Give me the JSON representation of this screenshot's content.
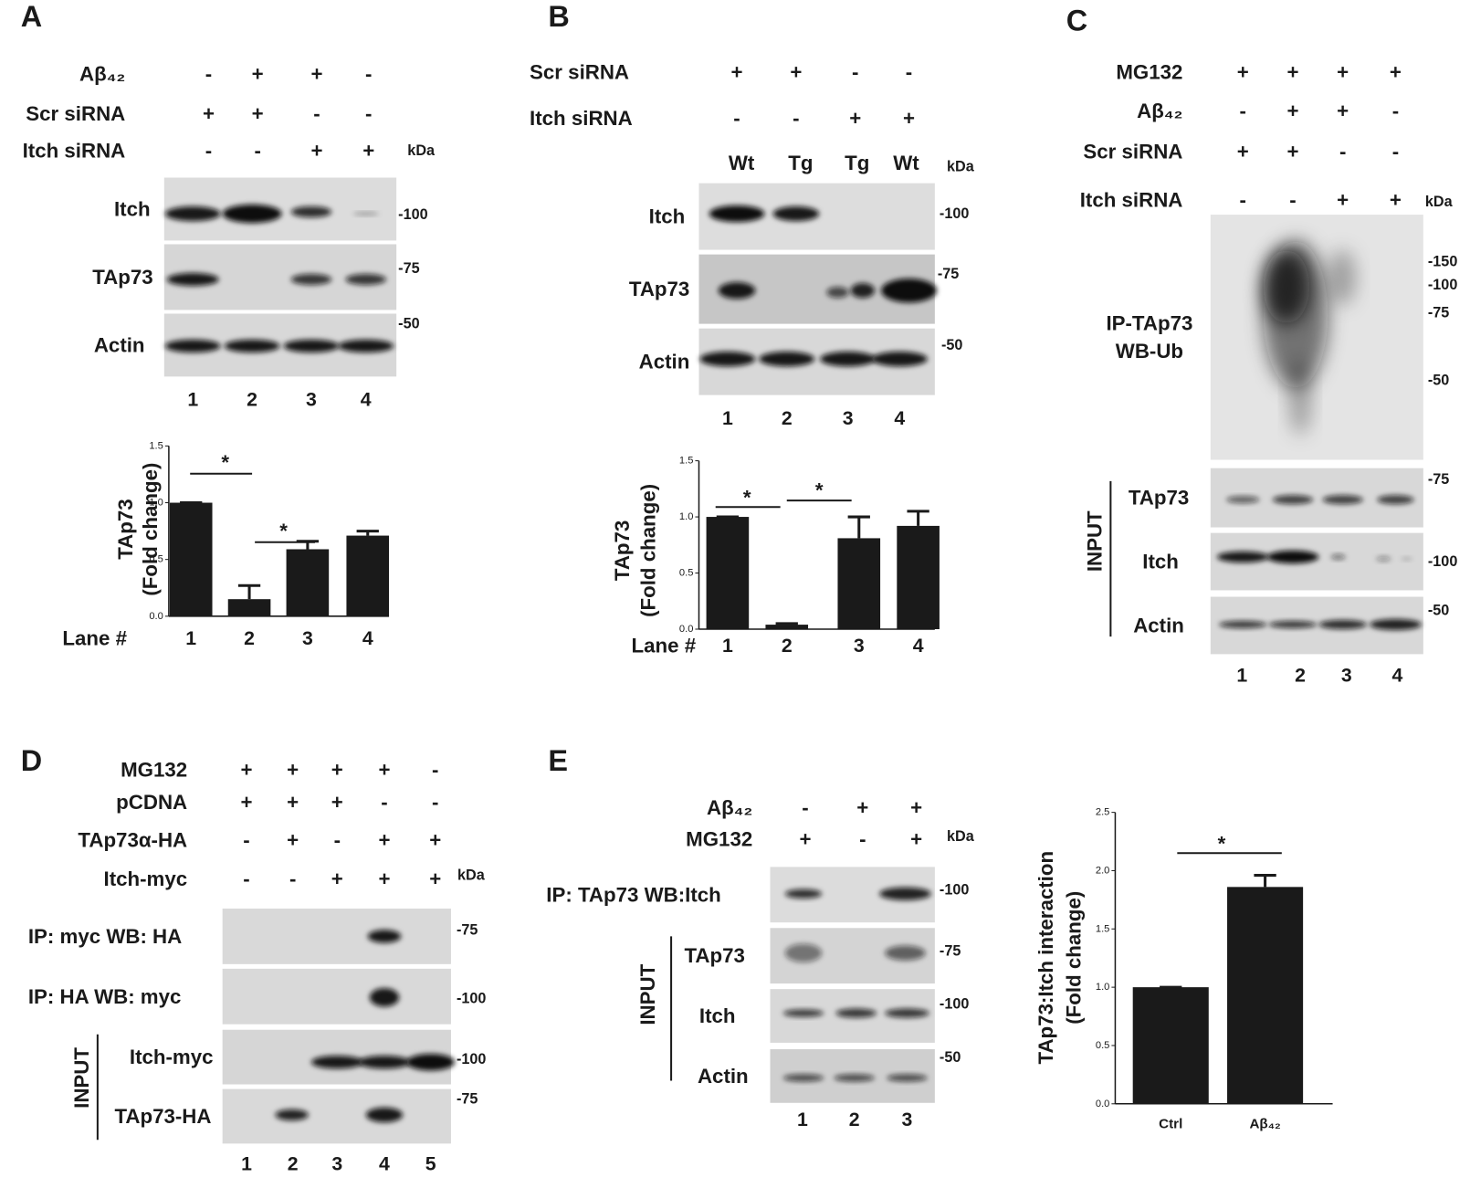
{
  "panels": {
    "A": {
      "letter": "A",
      "conditions": [
        {
          "label": "Aβ₄₂",
          "marks": [
            "-",
            "+",
            "+",
            "-"
          ]
        },
        {
          "label": "Scr siRNA",
          "marks": [
            "+",
            "+",
            "-",
            "-"
          ]
        },
        {
          "label": "Itch siRNA",
          "marks": [
            "-",
            "-",
            "+",
            "+"
          ]
        }
      ],
      "kda": "kDa",
      "blots": [
        "Itch",
        "TAp73",
        "Actin"
      ],
      "mw_markers": [
        "-100",
        "-75",
        "-50"
      ],
      "lanes": [
        "1",
        "2",
        "3",
        "4"
      ]
    },
    "B": {
      "letter": "B",
      "conditions": [
        {
          "label": "Scr siRNA",
          "marks": [
            "+",
            "+",
            "-",
            "-"
          ]
        },
        {
          "label": "Itch siRNA",
          "marks": [
            "-",
            "-",
            "+",
            "+"
          ]
        }
      ],
      "lane_headers": [
        "Wt",
        "Tg",
        "Tg",
        "Wt"
      ],
      "kda": "kDa",
      "blots": [
        "Itch",
        "TAp73",
        "Actin"
      ],
      "mw_markers": [
        "-100",
        "-75",
        "-50"
      ],
      "lanes": [
        "1",
        "2",
        "3",
        "4"
      ]
    },
    "C": {
      "letter": "C",
      "conditions": [
        {
          "label": "MG132",
          "marks": [
            "+",
            "+",
            "+",
            "+"
          ]
        },
        {
          "label": "Aβ₄₂",
          "marks": [
            "-",
            "+",
            "+",
            "-"
          ]
        },
        {
          "label": "Scr siRNA",
          "marks": [
            "+",
            "+",
            "-",
            "-"
          ]
        },
        {
          "label": "Itch siRNA",
          "marks": [
            "-",
            "-",
            "+",
            "+"
          ]
        }
      ],
      "kda": "kDa",
      "blots": [
        [
          "IP-TAp73",
          "WB-Ub"
        ],
        "TAp73",
        "Itch",
        "Actin"
      ],
      "input": "INPUT",
      "mw_markers": [
        "-150",
        "-100",
        "-75",
        "-50",
        "-75",
        "-100",
        "-50"
      ],
      "lanes": [
        "1",
        "2",
        "3",
        "4"
      ]
    },
    "D": {
      "letter": "D",
      "conditions": [
        {
          "label": "MG132",
          "marks": [
            "+",
            "+",
            "+",
            "+",
            "-"
          ]
        },
        {
          "label": "pCDNA",
          "marks": [
            "+",
            "+",
            "+",
            "-",
            "-"
          ]
        },
        {
          "label": "TAp73α-HA",
          "marks": [
            "-",
            "+",
            "-",
            "+",
            "+"
          ]
        },
        {
          "label": "Itch-myc",
          "marks": [
            "-",
            "-",
            "+",
            "+",
            "+"
          ]
        }
      ],
      "kda": "kDa",
      "blots": [
        "IP: myc WB: HA",
        "IP: HA WB: myc",
        "Itch-myc",
        "TAp73-HA"
      ],
      "input": "INPUT",
      "mw_markers": [
        "-75",
        "-100",
        "-100",
        "-75"
      ],
      "lanes": [
        "1",
        "2",
        "3",
        "4",
        "5"
      ]
    },
    "E": {
      "letter": "E",
      "conditions": [
        {
          "label": "Aβ₄₂",
          "marks": [
            "-",
            "+",
            "+"
          ]
        },
        {
          "label": "MG132",
          "marks": [
            "+",
            "-",
            "+"
          ]
        }
      ],
      "kda": "kDa",
      "blots": [
        "IP: TAp73 WB:Itch",
        "TAp73",
        "Itch",
        "Actin"
      ],
      "input": "INPUT",
      "mw_markers": [
        "-100",
        "-75",
        "-100",
        "-50"
      ],
      "lanes": [
        "1",
        "2",
        "3"
      ]
    }
  },
  "chart_data": [
    {
      "type": "bar",
      "y_label": [
        "TAp73",
        "(Fold change)"
      ],
      "x_label": "Lane #",
      "categories": [
        "1",
        "2",
        "3",
        "4"
      ],
      "values": [
        1.0,
        0.15,
        0.59,
        0.71
      ],
      "errors": [
        0,
        0.12,
        0.07,
        0.04
      ],
      "color": "#1a1a1a",
      "ylim": [
        0,
        1.5
      ],
      "yticks": [
        {
          "value": 0,
          "label": "0.0"
        },
        {
          "value": 0.5,
          "label": "0.5"
        },
        {
          "value": 1,
          "label": "1.0"
        },
        {
          "value": 1.5,
          "label": "1.5"
        }
      ],
      "annotations": [
        "*",
        "*"
      ]
    },
    {
      "type": "bar",
      "y_label": [
        "TAp73",
        "(Fold change)"
      ],
      "x_label": "Lane #",
      "categories": [
        "1",
        "2",
        "3",
        "4"
      ],
      "values": [
        1.0,
        0.04,
        0.81,
        0.92
      ],
      "errors": [
        0,
        0.01,
        0.19,
        0.13
      ],
      "color": "#1a1a1a",
      "ylim": [
        0,
        1.5
      ],
      "yticks": [
        {
          "value": 0,
          "label": "0.0"
        },
        {
          "value": 0.5,
          "label": "0.5"
        },
        {
          "value": 1,
          "label": "1.0"
        },
        {
          "value": 1.5,
          "label": "1.5"
        }
      ],
      "annotations": [
        "*",
        "*"
      ]
    },
    {
      "type": "bar",
      "y_label": [
        "TAp73:Itch interaction",
        "(Fold change)"
      ],
      "categories": [
        "Ctrl",
        "Aβ₄₂"
      ],
      "values": [
        1.0,
        1.86
      ],
      "errors": [
        0,
        0.1
      ],
      "color": "#1a1a1a",
      "ylim": [
        0,
        2.5
      ],
      "yticks": [
        {
          "value": 0,
          "label": "0.0"
        },
        {
          "value": 0.5,
          "label": "0.5"
        },
        {
          "value": 1,
          "label": "1.0"
        },
        {
          "value": 1.5,
          "label": "1.5"
        },
        {
          "value": 2,
          "label": "2.0"
        },
        {
          "value": 2.5,
          "label": "2.5"
        }
      ],
      "annotations": [
        "*"
      ]
    }
  ]
}
